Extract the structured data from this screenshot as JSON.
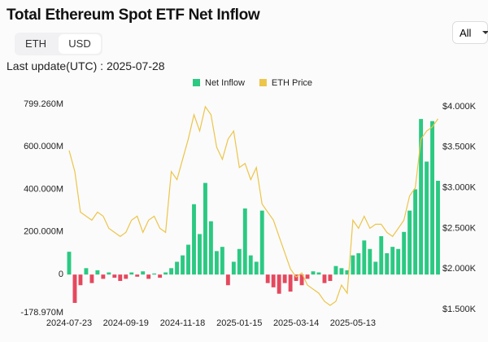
{
  "header": {
    "title": "Total Ethereum Spot ETF Net Inflow",
    "toggle": [
      "ETH",
      "USD"
    ],
    "dropdown": "All",
    "last_update": "Last update(UTC) : 2025-07-28"
  },
  "chart_data": {
    "type": "bar_line",
    "categories": [
      "2024-07-23",
      null,
      null,
      null,
      null,
      null,
      null,
      null,
      null,
      null,
      "2024-09-19",
      null,
      null,
      null,
      null,
      null,
      null,
      null,
      null,
      null,
      "2024-11-18",
      null,
      null,
      null,
      null,
      null,
      null,
      null,
      null,
      null,
      "2025-01-15",
      null,
      null,
      null,
      null,
      null,
      null,
      null,
      null,
      null,
      "2025-03-14",
      null,
      null,
      null,
      null,
      null,
      null,
      null,
      null,
      null,
      "2025-05-13",
      null,
      null,
      null,
      null,
      null,
      null,
      null,
      null,
      null,
      null,
      null,
      null,
      null,
      null,
      null
    ],
    "series": [
      {
        "name": "Net Inflow",
        "color": "#2bc982",
        "negative_color": "#e5485e",
        "values": [
          107,
          -133,
          -50,
          30,
          -40,
          20,
          -20,
          10,
          -15,
          -30,
          -20,
          10,
          -10,
          15,
          -20,
          5,
          -15,
          10,
          30,
          60,
          90,
          140,
          330,
          190,
          430,
          250,
          110,
          130,
          -50,
          60,
          120,
          310,
          90,
          60,
          300,
          -40,
          -60,
          -90,
          -40,
          -80,
          -30,
          -50,
          -20,
          15,
          10,
          -40,
          -30,
          40,
          30,
          20,
          90,
          100,
          160,
          120,
          60,
          180,
          100,
          130,
          120,
          200,
          300,
          400,
          730,
          530,
          720,
          440
        ]
      },
      {
        "name": "ETH Price",
        "color": "#ecc54a",
        "axis": "y2",
        "values": [
          3460,
          3200,
          2700,
          2650,
          2600,
          2700,
          2650,
          2500,
          2450,
          2400,
          2450,
          2600,
          2650,
          2450,
          2600,
          2650,
          2500,
          2450,
          3200,
          3100,
          3350,
          3600,
          3900,
          3700,
          4000,
          3900,
          3500,
          3350,
          3600,
          3700,
          3250,
          3300,
          3100,
          3250,
          2800,
          2700,
          2600,
          2400,
          2200,
          2000,
          1900,
          1950,
          1800,
          1750,
          1700,
          1600,
          1550,
          1600,
          1800,
          1700,
          2600,
          2500,
          2650,
          2500,
          2550,
          2550,
          2450,
          2400,
          2500,
          2600,
          2900,
          3000,
          3600,
          3700,
          3750,
          3850
        ]
      }
    ],
    "ylim": [
      -178.97,
      799.26
    ],
    "yticks": [
      {
        "value": 799.26,
        "label": "799.260M"
      },
      {
        "value": 600,
        "label": "600.000M"
      },
      {
        "value": 400,
        "label": "400.000M"
      },
      {
        "value": 200,
        "label": "200.000M"
      },
      0,
      {
        "value": -178.97,
        "label": "-178.970M"
      }
    ],
    "y2lim": [
      1460,
      4030
    ],
    "y2ticks": [
      {
        "value": 4000,
        "label": "$4.000K"
      },
      {
        "value": 3500,
        "label": "$3.500K"
      },
      {
        "value": 3000,
        "label": "$3.000K"
      },
      {
        "value": 2500,
        "label": "$2.500K"
      },
      {
        "value": 2000,
        "label": "$2.000K"
      },
      {
        "value": 1500,
        "label": "$1.500K"
      }
    ],
    "legend": "top"
  }
}
